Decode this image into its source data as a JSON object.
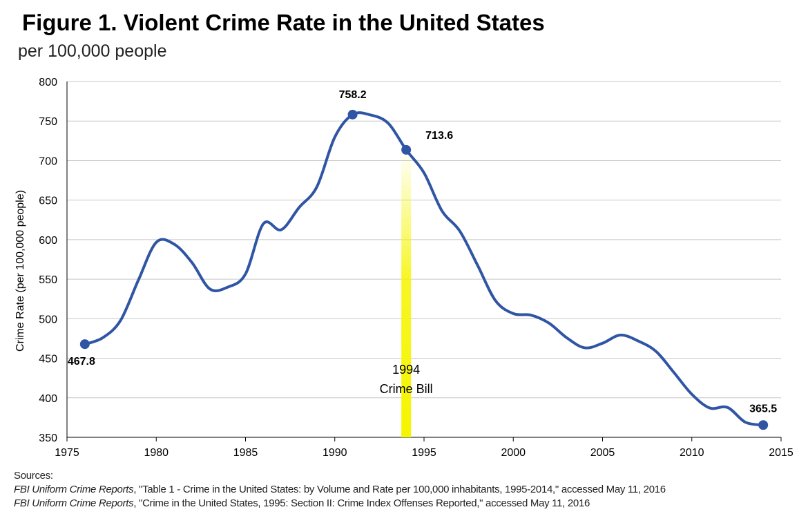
{
  "chart_data": {
    "type": "line",
    "title": "Figure 1. Violent Crime Rate in the United States",
    "subtitle": "per 100,000 people",
    "xlabel": "",
    "ylabel": "Crime Rate (per 100,000 people)",
    "xlim": [
      1975,
      2015
    ],
    "ylim": [
      350,
      800
    ],
    "xticks": [
      1975,
      1980,
      1985,
      1990,
      1995,
      2000,
      2005,
      2010,
      2015
    ],
    "yticks": [
      350,
      400,
      450,
      500,
      550,
      600,
      650,
      700,
      750,
      800
    ],
    "grid": true,
    "line_color": "#2f55a4",
    "highlight_color": "#f5f500",
    "x": [
      1976,
      1977,
      1978,
      1979,
      1980,
      1981,
      1982,
      1983,
      1984,
      1985,
      1986,
      1987,
      1988,
      1989,
      1990,
      1991,
      1992,
      1993,
      1994,
      1995,
      1996,
      1997,
      1998,
      1999,
      2000,
      2001,
      2002,
      2003,
      2004,
      2005,
      2006,
      2007,
      2008,
      2009,
      2010,
      2011,
      2012,
      2013,
      2014
    ],
    "values": [
      467.8,
      475.9,
      497.8,
      548.9,
      596.6,
      594.3,
      571.1,
      537.7,
      539.9,
      556.6,
      620.1,
      612.5,
      640.6,
      666.9,
      729.6,
      758.2,
      757.7,
      747.1,
      713.6,
      684.5,
      636.6,
      611.0,
      567.6,
      523.0,
      506.5,
      504.5,
      494.4,
      475.8,
      463.2,
      469.0,
      479.3,
      471.8,
      458.6,
      431.9,
      404.5,
      387.1,
      387.8,
      369.1,
      365.5
    ],
    "labeled_points": [
      {
        "x": 1976,
        "y": 467.8,
        "label": "467.8"
      },
      {
        "x": 1991,
        "y": 758.2,
        "label": "758.2"
      },
      {
        "x": 1994,
        "y": 713.6,
        "label": "713.6"
      },
      {
        "x": 2014,
        "y": 365.5,
        "label": "365.5"
      }
    ],
    "annotation": {
      "x": 1994,
      "lines": [
        "1994",
        "Crime Bill"
      ]
    }
  },
  "sources": {
    "heading": "Sources:",
    "items": [
      {
        "publication": "FBI Uniform Crime Reports",
        "text": ", \"Table 1 - Crime in the United States: by Volume and Rate per 100,000 inhabitants, 1995-2014,\" accessed May 11, 2016"
      },
      {
        "publication": "FBI Uniform Crime Reports",
        "text": ", \"Crime in the United States, 1995: Section II: Crime Index Offenses Reported,\" accessed May 11, 2016"
      }
    ]
  }
}
